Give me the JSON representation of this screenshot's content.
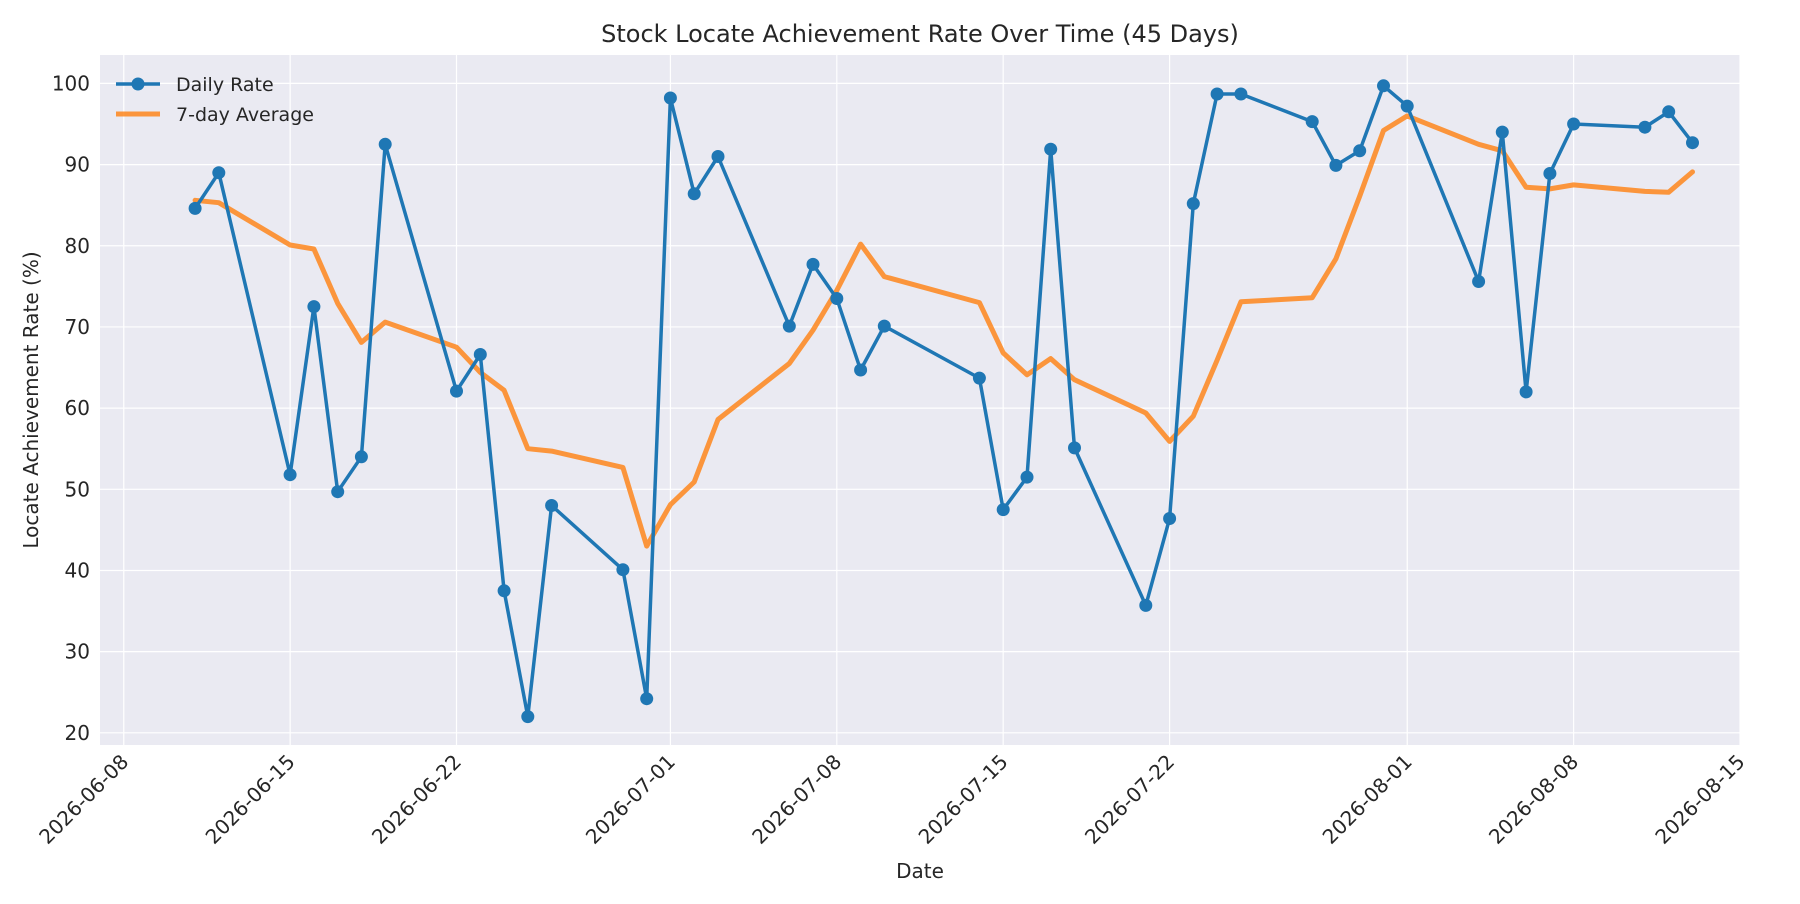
{
  "chart_data": {
    "type": "line",
    "title": "Stock Locate Achievement Rate Over Time (45 Days)",
    "xlabel": "Date",
    "ylabel": "Locate Achievement Rate (%)",
    "xlim": [
      "2026-06-07",
      "2026-08-15"
    ],
    "ylim": [
      18.5,
      103.5
    ],
    "x_ticks": [
      "2026-06-08",
      "2026-06-15",
      "2026-06-22",
      "2026-07-01",
      "2026-07-08",
      "2026-07-15",
      "2026-07-22",
      "2026-08-01",
      "2026-08-08",
      "2026-08-15"
    ],
    "y_ticks": [
      20,
      30,
      40,
      50,
      60,
      70,
      80,
      90,
      100
    ],
    "grid": true,
    "legend": "top-left",
    "x": [
      "2026-06-11",
      "2026-06-12",
      "2026-06-15",
      "2026-06-16",
      "2026-06-17",
      "2026-06-18",
      "2026-06-19",
      "2026-06-22",
      "2026-06-23",
      "2026-06-24",
      "2026-06-25",
      "2026-06-26",
      "2026-06-29",
      "2026-06-30",
      "2026-07-01",
      "2026-07-02",
      "2026-07-03",
      "2026-07-06",
      "2026-07-07",
      "2026-07-08",
      "2026-07-09",
      "2026-07-10",
      "2026-07-14",
      "2026-07-15",
      "2026-07-16",
      "2026-07-17",
      "2026-07-18",
      "2026-07-21",
      "2026-07-22",
      "2026-07-23",
      "2026-07-24",
      "2026-07-25",
      "2026-07-28",
      "2026-07-29",
      "2026-07-30",
      "2026-07-31",
      "2026-08-01",
      "2026-08-04",
      "2026-08-05",
      "2026-08-06",
      "2026-08-07",
      "2026-08-08",
      "2026-08-11",
      "2026-08-12",
      "2026-08-13"
    ],
    "series": [
      {
        "name": "Daily Rate",
        "color": "#1f77b4",
        "marker": "circle",
        "values": [
          84.6,
          89.0,
          51.8,
          72.5,
          49.7,
          54.0,
          92.5,
          62.1,
          66.6,
          37.5,
          22.0,
          48.0,
          40.1,
          24.2,
          98.2,
          86.4,
          91.0,
          70.1,
          77.7,
          73.5,
          64.7,
          70.1,
          63.7,
          47.5,
          51.5,
          91.9,
          55.1,
          35.7,
          46.4,
          85.2,
          98.7,
          98.7,
          95.3,
          89.9,
          91.7,
          99.7,
          97.2,
          75.6,
          94.0,
          62.0,
          88.9,
          95.0,
          94.6,
          96.5,
          92.7
        ]
      },
      {
        "name": "7-day Average",
        "color": "#ff7f0e",
        "marker": "none",
        "values": [
          85.6,
          85.3,
          80.1,
          79.6,
          72.9,
          68.1,
          70.6,
          67.5,
          64.4,
          62.2,
          55.0,
          54.7,
          52.7,
          43.0,
          48.1,
          50.9,
          58.6,
          65.5,
          69.6,
          74.5,
          80.2,
          76.2,
          73.0,
          66.8,
          64.1,
          66.1,
          63.5,
          59.4,
          55.9,
          59.0,
          65.9,
          73.1,
          73.6,
          78.4,
          86.1,
          94.2,
          96.0,
          92.5,
          91.7,
          87.2,
          87.0,
          87.5,
          86.7,
          86.6,
          89.1
        ]
      }
    ]
  }
}
